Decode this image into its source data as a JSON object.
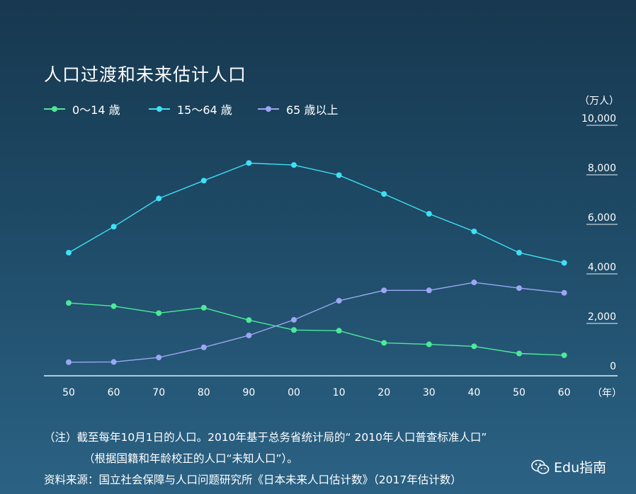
{
  "title": "人口过渡和未来估计人口",
  "legend": [
    {
      "label": "0～14 歳",
      "color": "#4de89a"
    },
    {
      "label": "15～64 歳",
      "color": "#3fe0f5"
    },
    {
      "label": "65 歳以上",
      "color": "#9da6f5"
    }
  ],
  "units": {
    "y": "（万人）",
    "x": "（年）"
  },
  "notes": {
    "line1": "（注）截至每年10月1日的人口。2010年基于总务省统计局的“ 2010年人口普查标准人口”",
    "line2": "（根据国籍和年龄校正的人口“未知人口”）。",
    "line3": "资料来源：国立社会保障与人口问题研究所《日本未来人口估计数》（2017年估计数）"
  },
  "watermark": "Edu指南",
  "chart_data": {
    "type": "line",
    "title": "人口过渡和未来估计人口",
    "xlabel": "（年）",
    "ylabel": "（万人）",
    "categories": [
      "50",
      "60",
      "70",
      "80",
      "90",
      "00",
      "10",
      "20",
      "30",
      "40",
      "50",
      "60"
    ],
    "y_ticks": [
      "0",
      "2,000",
      "4,000",
      "6,000",
      "8,000",
      "10,000"
    ],
    "ylim": [
      0,
      10000
    ],
    "series": [
      {
        "name": "0～14 歳",
        "color": "#4de89a",
        "values": [
          2940,
          2810,
          2530,
          2750,
          2250,
          1850,
          1820,
          1330,
          1270,
          1190,
          900,
          830
        ]
      },
      {
        "name": "15～64 歳",
        "color": "#3fe0f5",
        "values": [
          4970,
          6020,
          7160,
          7880,
          8590,
          8510,
          8100,
          7340,
          6540,
          5830,
          4970,
          4560
        ]
      },
      {
        "name": "65 歳以上",
        "color": "#9da6f5",
        "values": [
          550,
          560,
          740,
          1150,
          1630,
          2260,
          3030,
          3450,
          3450,
          3770,
          3540,
          3350
        ]
      }
    ]
  }
}
